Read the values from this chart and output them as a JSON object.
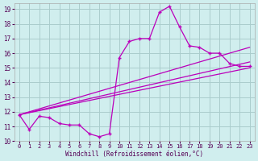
{
  "xlabel": "Windchill (Refroidissement éolien,°C)",
  "xlim": [
    -0.5,
    23.5
  ],
  "ylim": [
    10,
    19.4
  ],
  "background_color": "#d0eeee",
  "grid_color": "#aacccc",
  "line_color": "#bb00bb",
  "xticks": [
    0,
    1,
    2,
    3,
    4,
    5,
    6,
    7,
    8,
    9,
    10,
    11,
    12,
    13,
    14,
    15,
    16,
    17,
    18,
    19,
    20,
    21,
    22,
    23
  ],
  "yticks": [
    10,
    11,
    12,
    13,
    14,
    15,
    16,
    17,
    18,
    19
  ],
  "main_x": [
    0,
    1,
    2,
    3,
    4,
    5,
    6,
    7,
    8,
    9,
    10,
    11,
    12,
    13,
    14,
    15,
    16,
    17,
    18,
    19,
    20,
    21,
    22,
    23
  ],
  "main_y": [
    11.8,
    10.8,
    11.7,
    11.6,
    11.2,
    11.1,
    11.1,
    10.5,
    10.3,
    10.5,
    15.7,
    16.8,
    17.0,
    17.0,
    18.8,
    19.2,
    17.8,
    16.5,
    16.4,
    16.0,
    16.0,
    15.3,
    15.1,
    15.1
  ],
  "trend1_x": [
    0,
    23
  ],
  "trend1_y": [
    11.8,
    16.4
  ],
  "trend2_x": [
    0,
    23
  ],
  "trend2_y": [
    11.8,
    15.4
  ],
  "trend3_x": [
    0,
    23
  ],
  "trend3_y": [
    11.8,
    15.0
  ]
}
